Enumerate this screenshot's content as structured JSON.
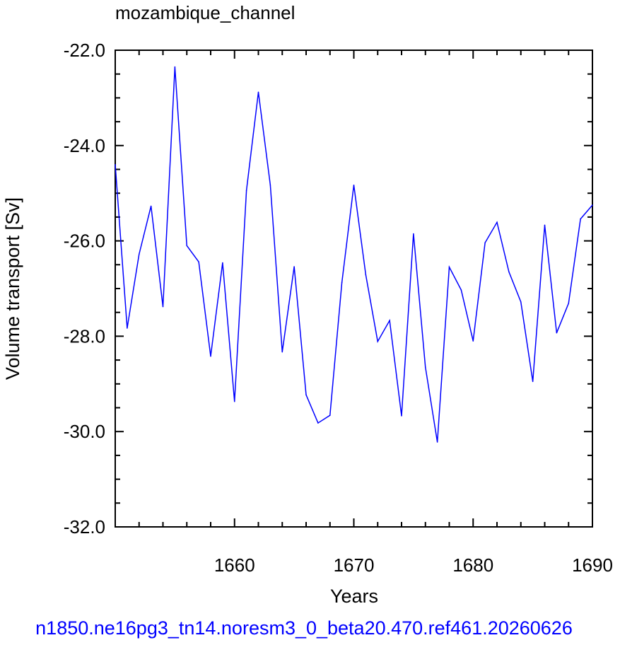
{
  "chart_data": {
    "type": "line",
    "title": "mozambique_channel",
    "xlabel": "Years",
    "ylabel": "Volume transport [Sv]",
    "xlim": [
      1650,
      1690
    ],
    "ylim": [
      -32.0,
      -22.0
    ],
    "x_ticks": [
      1660,
      1670,
      1680,
      1690
    ],
    "x_tick_labels": [
      "1660",
      "1670",
      "1680",
      "1690"
    ],
    "y_ticks": [
      -22.0,
      -24.0,
      -26.0,
      -28.0,
      -30.0,
      -32.0
    ],
    "y_tick_labels": [
      "-22.0",
      "-24.0",
      "-26.0",
      "-28.0",
      "-30.0",
      "-32.0"
    ],
    "x_minor_step": 2,
    "y_minor_step": 0.5,
    "grid": false,
    "line_color": "#0000ff",
    "series": [
      {
        "x": [
          1650,
          1651,
          1652,
          1653,
          1654,
          1655,
          1656,
          1657,
          1658,
          1659,
          1660,
          1661,
          1662,
          1663,
          1664,
          1665,
          1666,
          1667,
          1668,
          1669,
          1670,
          1671,
          1672,
          1673,
          1674,
          1675,
          1676,
          1677,
          1678,
          1679,
          1680,
          1681,
          1682,
          1683,
          1684,
          1685,
          1686,
          1687,
          1688,
          1689,
          1690
        ],
        "values": [
          -24.4,
          -27.83,
          -26.28,
          -25.27,
          -27.38,
          -22.35,
          -26.1,
          -26.44,
          -28.42,
          -26.46,
          -29.37,
          -24.94,
          -22.88,
          -24.83,
          -28.33,
          -26.54,
          -29.23,
          -29.82,
          -29.66,
          -26.87,
          -24.83,
          -26.71,
          -28.11,
          -27.67,
          -29.67,
          -25.85,
          -28.65,
          -30.22,
          -26.55,
          -27.03,
          -28.1,
          -26.04,
          -25.61,
          -26.65,
          -27.28,
          -28.95,
          -25.67,
          -27.93,
          -27.31,
          -25.54,
          -25.25
        ]
      }
    ]
  },
  "footer": {
    "text": "n1850.ne16pg3_tn14.noresm3_0_beta20.470.ref461.20260626",
    "color": "#0000ff"
  }
}
